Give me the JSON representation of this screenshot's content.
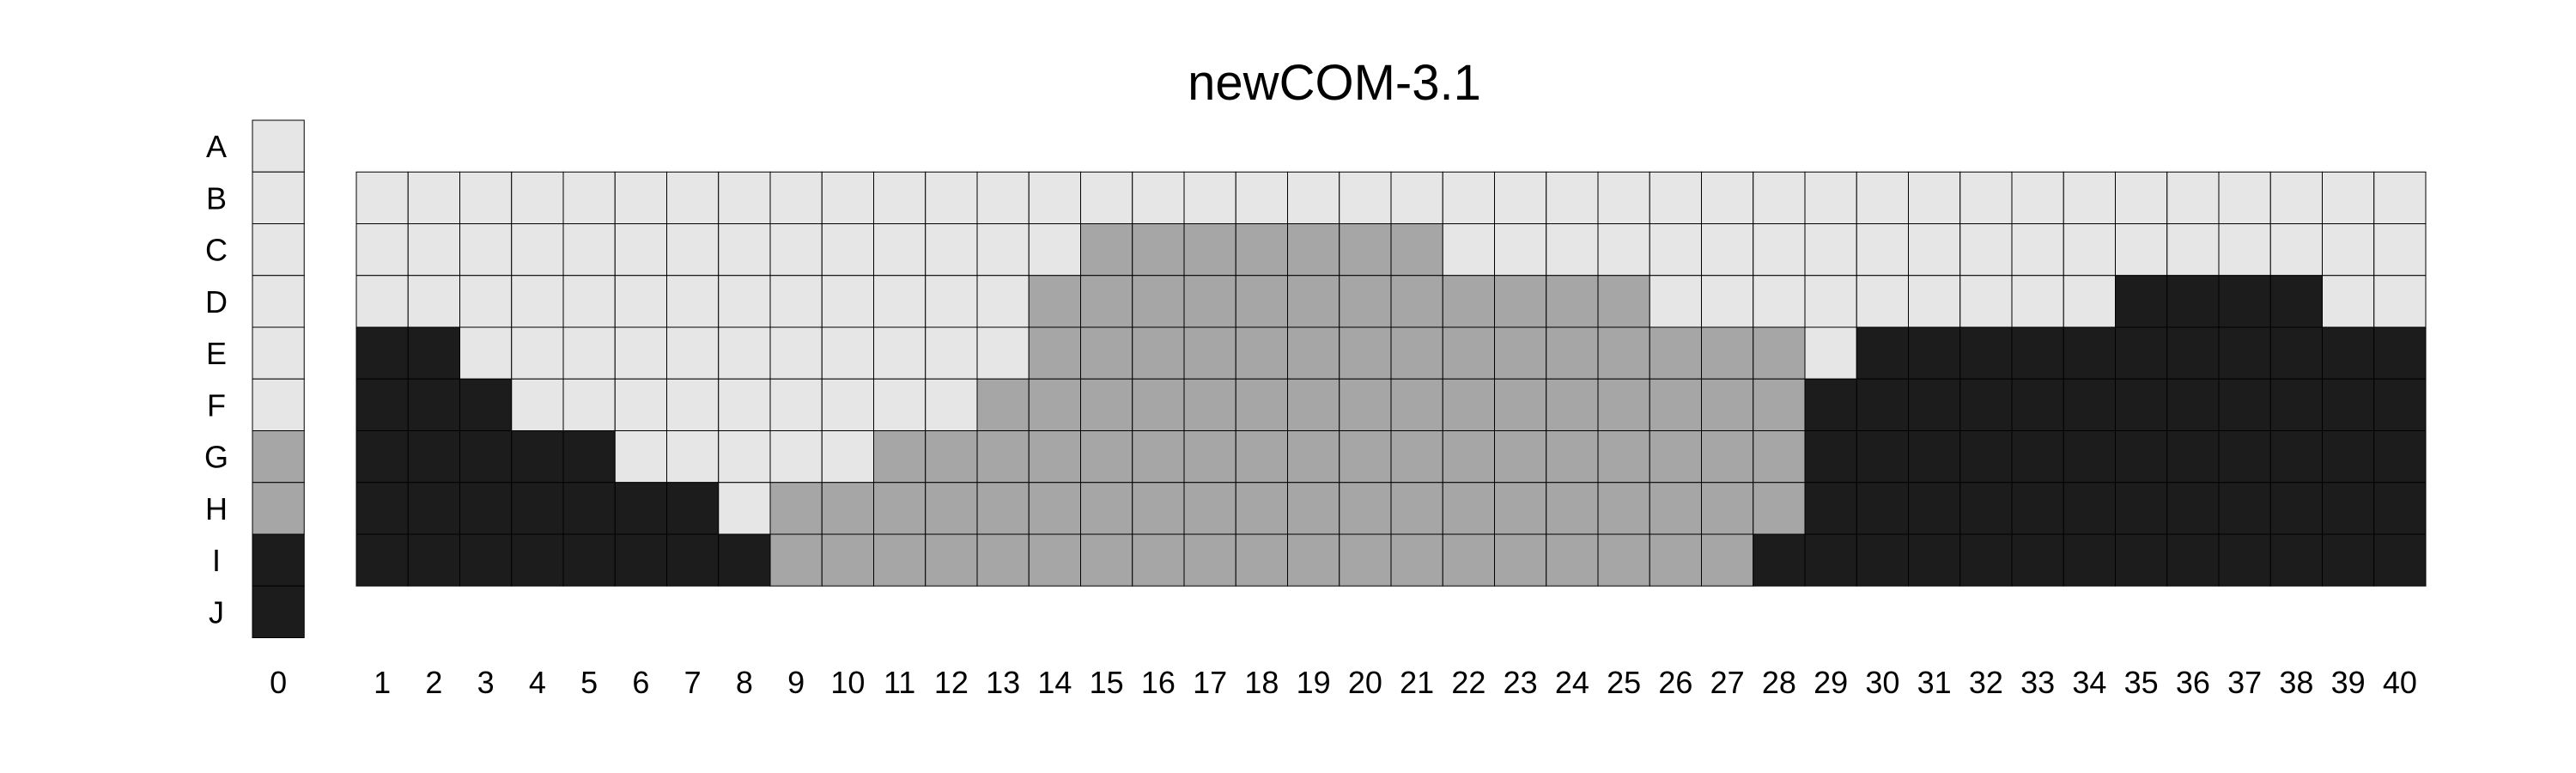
{
  "chart_data": {
    "type": "heatmap",
    "title": "newCOM-3.1",
    "rows": [
      "A",
      "B",
      "C",
      "D",
      "E",
      "F",
      "G",
      "H",
      "I",
      "J"
    ],
    "columns": [
      "1",
      "2",
      "3",
      "4",
      "5",
      "6",
      "7",
      "8",
      "9",
      "10",
      "11",
      "12",
      "13",
      "14",
      "15",
      "16",
      "17",
      "18",
      "19",
      "20",
      "21",
      "22",
      "23",
      "24",
      "25",
      "26",
      "27",
      "28",
      "29",
      "30",
      "31",
      "32",
      "33",
      "34",
      "35",
      "36",
      "37",
      "38",
      "39",
      "40"
    ],
    "legend_column": {
      "label": "0",
      "values": [
        0,
        0,
        0,
        0,
        0,
        0,
        1,
        1,
        2,
        2
      ]
    },
    "grid_rows": [
      "B",
      "C",
      "D",
      "E",
      "F",
      "G",
      "H",
      "I"
    ],
    "levels": {
      "0": "#e6e6e6",
      "1": "#a6a6a6",
      "2": "#1c1c1c"
    },
    "cells": [
      [
        0,
        0,
        0,
        0,
        0,
        0,
        0,
        0,
        0,
        0,
        0,
        0,
        0,
        0,
        0,
        0,
        0,
        0,
        0,
        0,
        0,
        0,
        0,
        0,
        0,
        0,
        0,
        0,
        0,
        0,
        0,
        0,
        0,
        0,
        0,
        0,
        0,
        0,
        0,
        0
      ],
      [
        0,
        0,
        0,
        0,
        0,
        0,
        0,
        0,
        0,
        0,
        0,
        0,
        0,
        0,
        1,
        1,
        1,
        1,
        1,
        1,
        1,
        0,
        0,
        0,
        0,
        0,
        0,
        0,
        0,
        0,
        0,
        0,
        0,
        0,
        0,
        0,
        0,
        0,
        0,
        0
      ],
      [
        0,
        0,
        0,
        0,
        0,
        0,
        0,
        0,
        0,
        0,
        0,
        0,
        0,
        1,
        1,
        1,
        1,
        1,
        1,
        1,
        1,
        1,
        1,
        1,
        1,
        0,
        0,
        0,
        0,
        0,
        0,
        0,
        0,
        0,
        2,
        2,
        2,
        2,
        0,
        0
      ],
      [
        2,
        2,
        0,
        0,
        0,
        0,
        0,
        0,
        0,
        0,
        0,
        0,
        0,
        1,
        1,
        1,
        1,
        1,
        1,
        1,
        1,
        1,
        1,
        1,
        1,
        1,
        1,
        1,
        0,
        2,
        2,
        2,
        2,
        2,
        2,
        2,
        2,
        2,
        2,
        2
      ],
      [
        2,
        2,
        2,
        0,
        0,
        0,
        0,
        0,
        0,
        0,
        0,
        0,
        1,
        1,
        1,
        1,
        1,
        1,
        1,
        1,
        1,
        1,
        1,
        1,
        1,
        1,
        1,
        1,
        2,
        2,
        2,
        2,
        2,
        2,
        2,
        2,
        2,
        2,
        2,
        2
      ],
      [
        2,
        2,
        2,
        2,
        2,
        0,
        0,
        0,
        0,
        0,
        1,
        1,
        1,
        1,
        1,
        1,
        1,
        1,
        1,
        1,
        1,
        1,
        1,
        1,
        1,
        1,
        1,
        1,
        2,
        2,
        2,
        2,
        2,
        2,
        2,
        2,
        2,
        2,
        2,
        2
      ],
      [
        2,
        2,
        2,
        2,
        2,
        2,
        2,
        0,
        1,
        1,
        1,
        1,
        1,
        1,
        1,
        1,
        1,
        1,
        1,
        1,
        1,
        1,
        1,
        1,
        1,
        1,
        1,
        1,
        2,
        2,
        2,
        2,
        2,
        2,
        2,
        2,
        2,
        2,
        2,
        2
      ],
      [
        2,
        2,
        2,
        2,
        2,
        2,
        2,
        2,
        1,
        1,
        1,
        1,
        1,
        1,
        1,
        1,
        1,
        1,
        1,
        1,
        1,
        1,
        1,
        1,
        1,
        1,
        1,
        2,
        2,
        2,
        2,
        2,
        2,
        2,
        2,
        2,
        2,
        2,
        2,
        2
      ]
    ]
  }
}
